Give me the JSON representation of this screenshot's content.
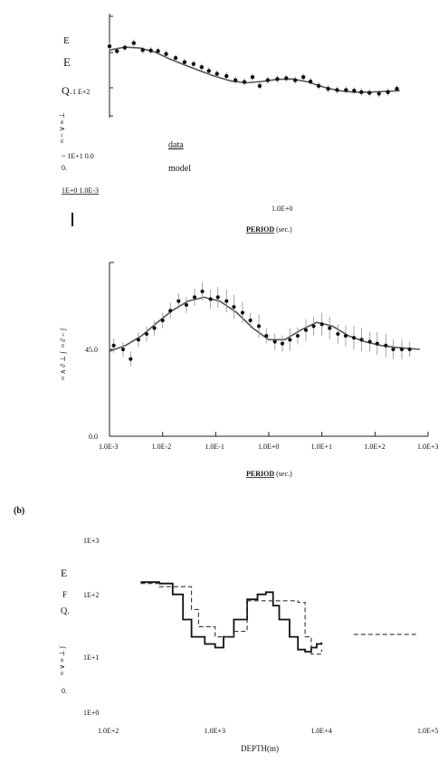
{
  "page_fragments": {
    "top_letters": [
      "E",
      "E",
      "Q.",
      "1 E+2"
    ],
    "top_side_text": "~ 1E+1 0.0",
    "top_side_text2": "0.",
    "top_bottom_text": "1E+0 1.0E-3",
    "mid_side_text": "45.0",
    "panel_b_label": "(b)",
    "bottom_letters": [
      "E",
      "F",
      "Q.",
      "0."
    ]
  },
  "chart_data": [
    {
      "type": "scatter",
      "id": "apparent-resistivity",
      "xlabel": "PERIOD",
      "xlabel_unit": "(sec.)",
      "x_tick": "1.0E+0",
      "legend": [
        "data",
        "model"
      ],
      "series": [
        {
          "name": "data",
          "points": [
            [
              0.001,
              250
            ],
            [
              0.0014,
              200
            ],
            [
              0.002,
              235
            ],
            [
              0.003,
              290
            ],
            [
              0.0045,
              210
            ],
            [
              0.0065,
              205
            ],
            [
              0.009,
              200
            ],
            [
              0.013,
              175
            ],
            [
              0.02,
              145
            ],
            [
              0.03,
              120
            ],
            [
              0.045,
              110
            ],
            [
              0.065,
              95
            ],
            [
              0.09,
              80
            ],
            [
              0.13,
              70
            ],
            [
              0.2,
              63
            ],
            [
              0.3,
              52
            ],
            [
              0.45,
              48
            ],
            [
              0.65,
              60
            ],
            [
              0.9,
              40
            ],
            [
              1.3,
              52
            ],
            [
              2.0,
              55
            ],
            [
              3.0,
              57
            ],
            [
              4.5,
              52
            ],
            [
              6.5,
              60
            ],
            [
              9.0,
              49
            ],
            [
              13,
              40
            ],
            [
              20,
              35
            ],
            [
              30,
              33
            ],
            [
              45,
              33
            ],
            [
              65,
              32
            ],
            [
              90,
              30
            ],
            [
              130,
              29
            ],
            [
              200,
              28
            ],
            [
              300,
              30
            ],
            [
              450,
              35
            ]
          ]
        },
        {
          "name": "model",
          "points": [
            [
              0.001,
              210
            ],
            [
              0.002,
              240
            ],
            [
              0.004,
              230
            ],
            [
              0.008,
              190
            ],
            [
              0.015,
              140
            ],
            [
              0.03,
              105
            ],
            [
              0.06,
              80
            ],
            [
              0.12,
              62
            ],
            [
              0.25,
              50
            ],
            [
              0.5,
              46
            ],
            [
              1.0,
              49
            ],
            [
              2.0,
              54
            ],
            [
              4.0,
              55
            ],
            [
              8.0,
              48
            ],
            [
              16,
              38
            ],
            [
              32,
              32
            ],
            [
              64,
              30
            ],
            [
              128,
              30
            ],
            [
              256,
              31
            ],
            [
              512,
              32
            ]
          ]
        }
      ]
    },
    {
      "type": "scatter",
      "id": "phase",
      "xlabel": "PERIOD",
      "xlabel_unit": "(sec.)",
      "x_ticks": [
        "1.0E-3",
        "1.0E-2",
        "1.0E-1",
        "1.0E+0",
        "1.0E+1",
        "1.0E+2",
        "1.0E+3"
      ],
      "y_ticks": [
        "0.0",
        "45.0"
      ],
      "xlim": [
        0.001,
        1000
      ],
      "ylim": [
        0,
        90
      ],
      "series": [
        {
          "name": "data",
          "points": [
            [
              0.0012,
              47
            ],
            [
              0.0018,
              45
            ],
            [
              0.0025,
              40
            ],
            [
              0.0035,
              50
            ],
            [
              0.005,
              53
            ],
            [
              0.007,
              56
            ],
            [
              0.01,
              60
            ],
            [
              0.014,
              65
            ],
            [
              0.02,
              70
            ],
            [
              0.028,
              68
            ],
            [
              0.04,
              72
            ],
            [
              0.056,
              75
            ],
            [
              0.08,
              71
            ],
            [
              0.11,
              72
            ],
            [
              0.16,
              70
            ],
            [
              0.22,
              67
            ],
            [
              0.32,
              64
            ],
            [
              0.45,
              60
            ],
            [
              0.65,
              57
            ],
            [
              0.9,
              52
            ],
            [
              1.3,
              49
            ],
            [
              1.8,
              48
            ],
            [
              2.5,
              50
            ],
            [
              3.5,
              52
            ],
            [
              5,
              55
            ],
            [
              7,
              57
            ],
            [
              10,
              58
            ],
            [
              14,
              56
            ],
            [
              20,
              53
            ],
            [
              28,
              52
            ],
            [
              40,
              51
            ],
            [
              56,
              50
            ],
            [
              80,
              49
            ],
            [
              110,
              48
            ],
            [
              160,
              47
            ],
            [
              220,
              45
            ],
            [
              320,
              45
            ],
            [
              450,
              45
            ]
          ]
        },
        {
          "name": "model",
          "points": [
            [
              0.001,
              44
            ],
            [
              0.002,
              47
            ],
            [
              0.004,
              52
            ],
            [
              0.008,
              59
            ],
            [
              0.015,
              65
            ],
            [
              0.03,
              70
            ],
            [
              0.06,
              72
            ],
            [
              0.12,
              70
            ],
            [
              0.25,
              64
            ],
            [
              0.5,
              56
            ],
            [
              1.0,
              50
            ],
            [
              2.0,
              50
            ],
            [
              4.0,
              55
            ],
            [
              8.0,
              59
            ],
            [
              16,
              57
            ],
            [
              32,
              52
            ],
            [
              64,
              49
            ],
            [
              128,
              47
            ],
            [
              256,
              46
            ],
            [
              700,
              45
            ]
          ]
        }
      ]
    },
    {
      "type": "line",
      "id": "resistivity-depth",
      "xlabel": "DEPTH(m)",
      "x_ticks": [
        "1.0E+2",
        "1.0E+3",
        "1.0E+4",
        "1.0E+5"
      ],
      "y_ticks": [
        "1E+0",
        "1E+1",
        "1E+2",
        "1E+3"
      ],
      "xlim": [
        100,
        100000
      ],
      "ylim": [
        1,
        1000
      ],
      "series": [
        {
          "name": "",
          "style": "solid",
          "steps": [
            [
              200,
              180
            ],
            [
              300,
              170
            ],
            [
              400,
              110
            ],
            [
              500,
              40
            ],
            [
              600,
              20
            ],
            [
              800,
              15
            ],
            [
              1000,
              13
            ],
            [
              1200,
              20
            ],
            [
              1500,
              40
            ],
            [
              2000,
              90
            ],
            [
              2500,
              110
            ],
            [
              3000,
              120
            ],
            [
              3500,
              70
            ],
            [
              4000,
              40
            ],
            [
              5000,
              20
            ],
            [
              6000,
              12
            ],
            [
              7000,
              11
            ],
            [
              8000,
              13
            ],
            [
              9000,
              15
            ],
            [
              10000,
              16
            ]
          ]
        },
        {
          "name": "",
          "style": "dashed",
          "steps": [
            [
              200,
              170
            ],
            [
              300,
              150
            ],
            [
              600,
              60
            ],
            [
              700,
              30
            ],
            [
              1000,
              20
            ],
            [
              1500,
              25
            ],
            [
              2000,
              85
            ],
            [
              6000,
              80
            ],
            [
              7000,
              20
            ],
            [
              8000,
              10
            ],
            [
              10000,
              12
            ]
          ]
        },
        {
          "name": "",
          "style": "dashed-segment",
          "x_range": [
            20000,
            80000
          ],
          "value": 22
        }
      ]
    }
  ]
}
